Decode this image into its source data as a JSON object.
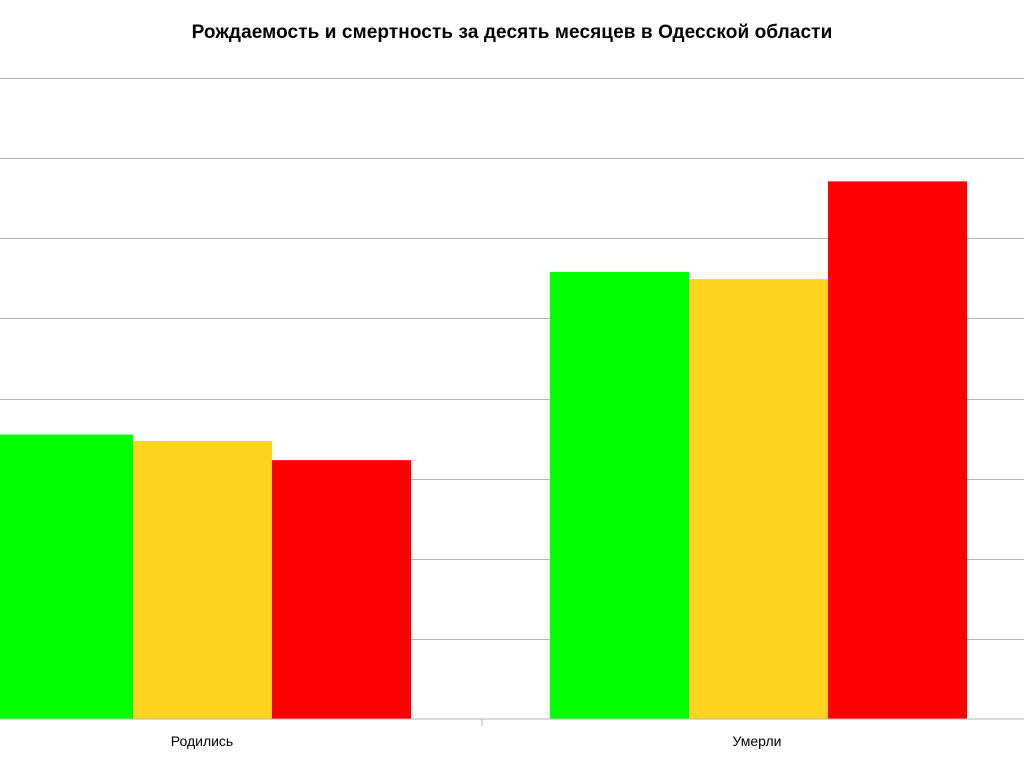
{
  "chart_data": {
    "type": "bar",
    "title": "Рождаемость и смертность за десять месяцев в Одесской области",
    "categories": [
      "Родились",
      "Умерли"
    ],
    "series": [
      {
        "color": "#00ff00",
        "values": [
          3.55,
          5.58
        ]
      },
      {
        "color": "#ffd320",
        "values": [
          3.47,
          5.49
        ]
      },
      {
        "color": "#ff0000",
        "values": [
          3.23,
          6.71
        ]
      }
    ],
    "ylim": [
      0,
      8
    ],
    "grid": true,
    "legend": "none"
  }
}
